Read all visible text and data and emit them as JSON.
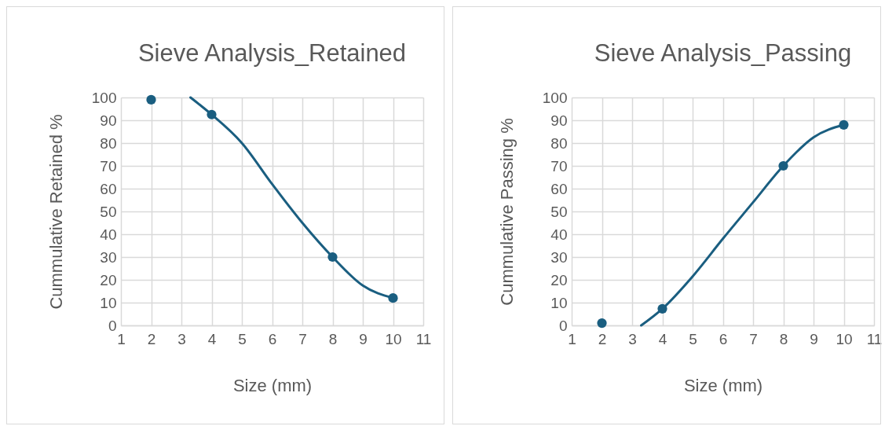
{
  "chart_data": [
    {
      "type": "scatter",
      "title": "Sieve Analysis_Retained",
      "xlabel": "Size (mm)",
      "ylabel": "Cummulative Retained %",
      "xlim": [
        1,
        11
      ],
      "xticks": [
        1,
        2,
        3,
        4,
        5,
        6,
        7,
        8,
        9,
        10,
        11
      ],
      "ylim": [
        0,
        100
      ],
      "yticks": [
        0,
        10,
        20,
        30,
        40,
        50,
        60,
        70,
        80,
        90,
        100
      ],
      "grid": true,
      "series": [
        {
          "type": "scatter",
          "marker": "circle",
          "color": "#1a5e80",
          "x": [
            2,
            4,
            8,
            10
          ],
          "values": [
            99,
            92.5,
            30,
            12
          ]
        },
        {
          "type": "line",
          "marker": "none",
          "color": "#1a5e80",
          "x": [
            3.3,
            4,
            5,
            6,
            7,
            8,
            9,
            10
          ],
          "values": [
            100,
            92.5,
            80,
            62,
            45,
            30,
            17.5,
            12
          ]
        }
      ]
    },
    {
      "type": "scatter",
      "title": "Sieve Analysis_Passing",
      "xlabel": "Size (mm)",
      "ylabel": "Cummulative Passing %",
      "xlim": [
        1,
        11
      ],
      "xticks": [
        1,
        2,
        3,
        4,
        5,
        6,
        7,
        8,
        9,
        10,
        11
      ],
      "ylim": [
        0,
        100
      ],
      "yticks": [
        0,
        10,
        20,
        30,
        40,
        50,
        60,
        70,
        80,
        90,
        100
      ],
      "grid": true,
      "series": [
        {
          "type": "scatter",
          "marker": "circle",
          "color": "#1a5e80",
          "x": [
            2,
            4,
            8,
            10
          ],
          "values": [
            1,
            7.3,
            70,
            88
          ]
        },
        {
          "type": "line",
          "marker": "none",
          "color": "#1a5e80",
          "x": [
            3.3,
            4,
            5,
            6,
            7,
            8,
            9,
            10
          ],
          "values": [
            0,
            7.3,
            21.5,
            38,
            54,
            70,
            82.5,
            88
          ]
        }
      ]
    }
  ]
}
